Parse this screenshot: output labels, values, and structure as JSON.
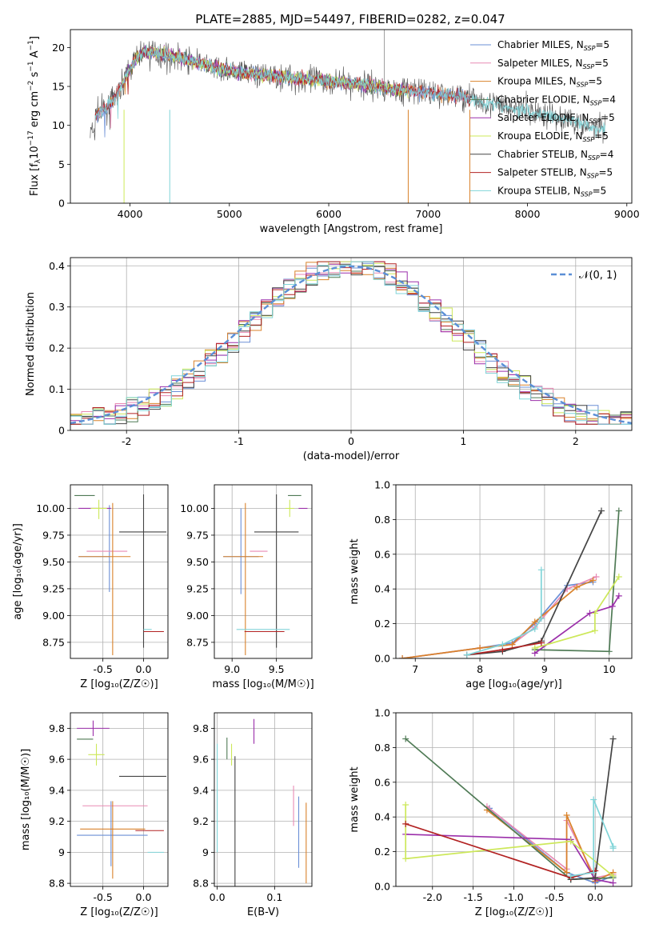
{
  "suptitle": "PLATE=2885, MJD=54497, FIBERID=0282, z=0.047",
  "colors": {
    "chabrier_miles": "#6b8fd6",
    "salpeter_miles": "#e88ab4",
    "kroupa_miles": "#d9822b",
    "chabrier_elodie": "#4f7a55",
    "salpeter_elodie": "#9b2faa",
    "kroupa_elodie": "#cde85a",
    "chabrier_stelib": "#444444",
    "salpeter_stelib": "#b22222",
    "kroupa_stelib": "#80d4d8",
    "normal": "#5b8fd6",
    "grid": "#b0b0b0"
  },
  "chart_data": [
    {
      "id": "spectrum",
      "type": "line",
      "xlabel": "wavelength [Angstrom, rest frame]",
      "ylabel": "Flux [f_λ 10^-17 erg cm^-2 s^-1 A^-1]",
      "xlim": [
        3400,
        9050
      ],
      "ylim": [
        0,
        22.3
      ],
      "xticks": [
        4000,
        5000,
        6000,
        7000,
        8000,
        9000
      ],
      "yticks": [
        0,
        5,
        10,
        15,
        20
      ],
      "grid": false,
      "legend_position": "top-right",
      "legend": [
        {
          "main": "Chabrier MILES, N",
          "sub": "SSP",
          "tail": "=5",
          "key": "chabrier_miles"
        },
        {
          "main": "Salpeter MILES, N",
          "sub": "SSP",
          "tail": "=5",
          "key": "salpeter_miles"
        },
        {
          "main": "Kroupa MILES, N",
          "sub": "SSP",
          "tail": "=5",
          "key": "kroupa_miles"
        },
        {
          "main": "Chabrier ELODIE, N",
          "sub": "SSP",
          "tail": "=4",
          "key": "chabrier_elodie"
        },
        {
          "main": "Salpeter ELODIE, N",
          "sub": "SSP",
          "tail": "=5",
          "key": "salpeter_elodie"
        },
        {
          "main": "Kroupa ELODIE, N",
          "sub": "SSP",
          "tail": "=5",
          "key": "kroupa_elodie"
        },
        {
          "main": "Chabrier STELIB, N",
          "sub": "SSP",
          "tail": "=4",
          "key": "chabrier_stelib"
        },
        {
          "main": "Salpeter STELIB, N",
          "sub": "SSP",
          "tail": "=5",
          "key": "salpeter_stelib"
        },
        {
          "main": "Kroupa STELIB, N",
          "sub": "SSP",
          "tail": "=5",
          "key": "kroupa_stelib"
        }
      ],
      "continuum_x": [
        3650,
        3750,
        3850,
        3950,
        4050,
        4150,
        4300,
        4500,
        4700,
        4900,
        5100,
        5300,
        5500,
        5700,
        5900,
        6100,
        6300,
        6500,
        6700,
        6900,
        7100,
        7300,
        7500,
        7700,
        7900,
        8100,
        8300,
        8500,
        8780
      ],
      "continuum_y": [
        11.2,
        12.2,
        13.5,
        16.0,
        18.5,
        19.5,
        19.2,
        18.7,
        18.0,
        17.3,
        16.8,
        16.5,
        16.3,
        16.0,
        15.8,
        15.6,
        15.3,
        14.9,
        14.6,
        14.3,
        14.0,
        13.8,
        13.2,
        12.6,
        12.0,
        11.5,
        11.0,
        10.4,
        9.2
      ]
    },
    {
      "id": "residuals",
      "type": "histogram",
      "xlabel": "(data-model)/error",
      "ylabel": "Normed distribution",
      "xlim": [
        -2.5,
        2.5
      ],
      "ylim": [
        0,
        0.42
      ],
      "xticks": [
        -2,
        -1,
        0,
        1,
        2
      ],
      "yticks": [
        0.0,
        0.1,
        0.2,
        0.3,
        0.4
      ],
      "grid": true,
      "legend_position": "top-right",
      "bins": 50,
      "normal_label": "𝒩(0, 1)"
    },
    {
      "id": "age_vs_Z",
      "type": "errorbar",
      "xlabel": "Z [log₁₀(Z/Z☉)]",
      "ylabel": "age  [log₁₀(age/yr)]",
      "xlim": [
        -0.9,
        0.3
      ],
      "ylim": [
        8.6,
        10.22
      ],
      "xticks": [
        -0.5,
        0.0
      ],
      "yticks": [
        8.75,
        9.0,
        9.25,
        9.5,
        9.75,
        10.0
      ],
      "grid": true,
      "points": [
        {
          "key": "chabrier_miles",
          "x": -0.42,
          "xerr": [
            0.38,
            0.0
          ],
          "y": 9.55,
          "yerr": [
            0.33,
            0.48
          ]
        },
        {
          "key": "salpeter_miles",
          "x": -0.45,
          "xerr": [
            0.25,
            0.25
          ],
          "y": 9.6,
          "yerr": [
            0.0,
            0.0
          ]
        },
        {
          "key": "kroupa_miles",
          "x": -0.38,
          "xerr": [
            0.42,
            0.22
          ],
          "y": 9.55,
          "yerr": [
            0.92,
            0.5
          ]
        },
        {
          "key": "chabrier_elodie",
          "x": -0.6,
          "xerr": [
            0.25,
            0.0
          ],
          "y": 10.12,
          "yerr": [
            0.0,
            0.0
          ]
        },
        {
          "key": "salpeter_elodie",
          "x": -0.6,
          "xerr": [
            0.2,
            0.2
          ],
          "y": 10.0,
          "yerr": [
            0.0,
            0.0
          ]
        },
        {
          "key": "kroupa_elodie",
          "x": -0.55,
          "xerr": [
            0.1,
            0.1
          ],
          "y": 10.0,
          "yerr": [
            0.1,
            0.08
          ]
        },
        {
          "key": "chabrier_stelib",
          "x": 0.0,
          "xerr": [
            0.3,
            0.28
          ],
          "y": 9.78,
          "yerr": [
            1.08,
            0.35
          ]
        },
        {
          "key": "salpeter_stelib",
          "x": 0.1,
          "xerr": [
            0.1,
            0.15
          ],
          "y": 8.85,
          "yerr": [
            0.0,
            0.0
          ]
        },
        {
          "key": "kroupa_stelib",
          "x": 0.05,
          "xerr": [
            0.05,
            0.05
          ],
          "y": 8.87,
          "yerr": [
            0.0,
            0.0
          ]
        }
      ]
    },
    {
      "id": "age_vs_mass",
      "type": "errorbar",
      "xlabel": "mass [log₁₀(M/M☉)]",
      "ylabel": "",
      "xlim": [
        8.8,
        9.9
      ],
      "ylim": [
        8.6,
        10.22
      ],
      "xticks": [
        9.0,
        9.5
      ],
      "yticks": [
        8.75,
        9.0,
        9.25,
        9.5,
        9.75,
        10.0
      ],
      "grid": true,
      "points": [
        {
          "key": "chabrier_miles",
          "x": 9.1,
          "xerr": [
            0.2,
            0.2
          ],
          "y": 9.55,
          "yerr": [
            0.35,
            0.45
          ]
        },
        {
          "key": "salpeter_miles",
          "x": 9.3,
          "xerr": [
            0.1,
            0.1
          ],
          "y": 9.6,
          "yerr": [
            0.0,
            0.0
          ]
        },
        {
          "key": "kroupa_miles",
          "x": 9.15,
          "xerr": [
            0.25,
            0.2
          ],
          "y": 9.55,
          "yerr": [
            0.92,
            0.5
          ]
        },
        {
          "key": "chabrier_elodie",
          "x": 9.73,
          "xerr": [
            0.1,
            0.05
          ],
          "y": 10.12,
          "yerr": [
            0.0,
            0.0
          ]
        },
        {
          "key": "salpeter_elodie",
          "x": 9.8,
          "xerr": [
            0.05,
            0.05
          ],
          "y": 10.0,
          "yerr": [
            0.0,
            0.0
          ]
        },
        {
          "key": "kroupa_elodie",
          "x": 9.65,
          "xerr": [
            0.05,
            0.05
          ],
          "y": 10.0,
          "yerr": [
            0.08,
            0.08
          ]
        },
        {
          "key": "chabrier_stelib",
          "x": 9.5,
          "xerr": [
            0.25,
            0.25
          ],
          "y": 9.78,
          "yerr": [
            1.08,
            0.35
          ]
        },
        {
          "key": "salpeter_stelib",
          "x": 9.14,
          "xerr": [
            0.0,
            0.45
          ],
          "y": 8.85,
          "yerr": [
            0.0,
            0.0
          ]
        },
        {
          "key": "kroupa_stelib",
          "x": 9.05,
          "xerr": [
            0.0,
            0.6
          ],
          "y": 8.87,
          "yerr": [
            0.0,
            0.0
          ]
        }
      ]
    },
    {
      "id": "weight_vs_age",
      "type": "line",
      "xlabel": "age  [log₁₀(age/yr)]",
      "ylabel": "mass weight",
      "xlim": [
        6.7,
        10.35
      ],
      "ylim": [
        0,
        1.0
      ],
      "xticks": [
        7,
        8,
        9,
        10
      ],
      "yticks": [
        0.0,
        0.2,
        0.4,
        0.6,
        0.8,
        1.0
      ],
      "grid": true,
      "series": [
        {
          "key": "chabrier_miles",
          "x": [
            6.8,
            8.0,
            8.5,
            8.85,
            9.35,
            9.75
          ],
          "y": [
            0.0,
            0.06,
            0.09,
            0.2,
            0.42,
            0.44
          ]
        },
        {
          "key": "salpeter_miles",
          "x": [
            6.8,
            8.0,
            8.5,
            8.85,
            9.35,
            9.8
          ],
          "y": [
            0.0,
            0.06,
            0.08,
            0.18,
            0.4,
            0.47
          ]
        },
        {
          "key": "kroupa_miles",
          "x": [
            6.8,
            8.0,
            8.5,
            8.85,
            9.5,
            9.75
          ],
          "y": [
            0.0,
            0.06,
            0.08,
            0.21,
            0.41,
            0.45
          ]
        },
        {
          "key": "chabrier_elodie",
          "x": [
            8.85,
            10.0,
            10.15
          ],
          "y": [
            0.05,
            0.04,
            0.85
          ]
        },
        {
          "key": "salpeter_elodie",
          "x": [
            8.85,
            9.7,
            10.05,
            10.15
          ],
          "y": [
            0.03,
            0.26,
            0.3,
            0.36
          ]
        },
        {
          "key": "kroupa_elodie",
          "x": [
            8.85,
            9.78,
            9.78,
            10.15
          ],
          "y": [
            0.06,
            0.16,
            0.26,
            0.47
          ]
        },
        {
          "key": "chabrier_stelib",
          "x": [
            7.8,
            8.35,
            8.95,
            9.88
          ],
          "y": [
            0.02,
            0.04,
            0.1,
            0.85
          ]
        },
        {
          "key": "salpeter_stelib",
          "x": [
            7.8,
            8.35,
            8.95
          ],
          "y": [
            0.02,
            0.05,
            0.09
          ]
        },
        {
          "key": "kroupa_stelib",
          "x": [
            7.8,
            8.35,
            8.85,
            8.95,
            8.95
          ],
          "y": [
            0.02,
            0.08,
            0.17,
            0.23,
            0.51
          ]
        }
      ]
    },
    {
      "id": "mass_vs_Z",
      "type": "errorbar",
      "xlabel": "Z [log₁₀(Z/Z☉)]",
      "ylabel": "mass [log₁₀(M/M☉)]",
      "xlim": [
        -0.9,
        0.3
      ],
      "ylim": [
        8.78,
        9.9
      ],
      "xticks": [
        -0.5,
        0.0
      ],
      "yticks": [
        8.8,
        9.0,
        9.2,
        9.4,
        9.6,
        9.8
      ],
      "grid": true,
      "points": [
        {
          "key": "chabrier_miles",
          "x": -0.4,
          "xerr": [
            0.42,
            0.45
          ],
          "y": 9.11,
          "yerr": [
            0.2,
            0.22
          ]
        },
        {
          "key": "salpeter_miles",
          "x": -0.4,
          "xerr": [
            0.35,
            0.45
          ],
          "y": 9.3,
          "yerr": [
            0.0,
            0.0
          ]
        },
        {
          "key": "kroupa_miles",
          "x": -0.38,
          "xerr": [
            0.4,
            0.4
          ],
          "y": 9.15,
          "yerr": [
            0.32,
            0.18
          ]
        },
        {
          "key": "chabrier_elodie",
          "x": -0.62,
          "xerr": [
            0.2,
            0.0
          ],
          "y": 9.73,
          "yerr": [
            0.0,
            0.0
          ]
        },
        {
          "key": "salpeter_elodie",
          "x": -0.62,
          "xerr": [
            0.2,
            0.2
          ],
          "y": 9.8,
          "yerr": [
            0.05,
            0.05
          ]
        },
        {
          "key": "kroupa_elodie",
          "x": -0.58,
          "xerr": [
            0.1,
            0.1
          ],
          "y": 9.63,
          "yerr": [
            0.07,
            0.07
          ]
        },
        {
          "key": "chabrier_stelib",
          "x": 0.0,
          "xerr": [
            0.3,
            0.28
          ],
          "y": 9.49,
          "yerr": [
            0.0,
            0.0
          ]
        },
        {
          "key": "salpeter_stelib",
          "x": 0.1,
          "xerr": [
            0.2,
            0.15
          ],
          "y": 9.14,
          "yerr": [
            0.0,
            0.0
          ]
        },
        {
          "key": "kroupa_stelib",
          "x": 0.05,
          "xerr": [
            0.0,
            0.2
          ],
          "y": 9.0,
          "yerr": [
            0.0,
            0.0
          ]
        }
      ]
    },
    {
      "id": "mass_vs_ebv",
      "type": "errorbar",
      "xlabel": "E(B-V)",
      "ylabel": "",
      "xlim": [
        -0.005,
        0.165
      ],
      "ylim": [
        8.78,
        9.9
      ],
      "xticks": [
        0.0,
        0.1
      ],
      "yticks": [
        8.8,
        9.0,
        9.2,
        9.4,
        9.6,
        9.8
      ],
      "grid": true,
      "points": [
        {
          "key": "chabrier_miles",
          "x": 0.142,
          "xerr": [
            0.0,
            0.0
          ],
          "y": 9.13,
          "yerr": [
            0.23,
            0.23
          ]
        },
        {
          "key": "salpeter_miles",
          "x": 0.133,
          "xerr": [
            0.0,
            0.0
          ],
          "y": 9.3,
          "yerr": [
            0.13,
            0.13
          ]
        },
        {
          "key": "kroupa_miles",
          "x": 0.155,
          "xerr": [
            0.0,
            0.0
          ],
          "y": 9.0,
          "yerr": [
            0.2,
            0.32
          ]
        },
        {
          "key": "chabrier_elodie",
          "x": 0.017,
          "xerr": [
            0.0,
            0.0
          ],
          "y": 9.67,
          "yerr": [
            0.07,
            0.07
          ]
        },
        {
          "key": "salpeter_elodie",
          "x": 0.064,
          "xerr": [
            0.0,
            0.0
          ],
          "y": 9.78,
          "yerr": [
            0.08,
            0.08
          ]
        },
        {
          "key": "kroupa_elodie",
          "x": 0.025,
          "xerr": [
            0.0,
            0.0
          ],
          "y": 9.63,
          "yerr": [
            0.07,
            0.07
          ]
        },
        {
          "key": "chabrier_stelib",
          "x": 0.031,
          "xerr": [
            0.0,
            0.0
          ],
          "y": 9.2,
          "yerr": [
            0.42,
            0.42
          ]
        },
        {
          "key": "salpeter_stelib",
          "x": 0.005,
          "xerr": [
            0.0,
            0.0
          ],
          "y": 9.4,
          "yerr": [
            0.0,
            0.0
          ]
        },
        {
          "key": "kroupa_stelib",
          "x": 0.0,
          "xerr": [
            0.0,
            0.0
          ],
          "y": 9.35,
          "yerr": [
            0.35,
            0.35
          ]
        }
      ]
    },
    {
      "id": "weight_vs_Z",
      "type": "line",
      "xlabel": "Z [log₁₀(Z/Z☉)]",
      "ylabel": "mass weight",
      "xlim": [
        -2.45,
        0.45
      ],
      "ylim": [
        0,
        1.0
      ],
      "xticks": [
        -2.0,
        -1.5,
        -1.0,
        -0.5,
        0.0
      ],
      "yticks": [
        0.0,
        0.2,
        0.4,
        0.6,
        0.8,
        1.0
      ],
      "grid": true,
      "series": [
        {
          "key": "chabrier_miles",
          "x": [
            -1.3,
            -0.35,
            0.0,
            0.22
          ],
          "y": [
            0.45,
            0.08,
            0.02,
            0.06
          ]
        },
        {
          "key": "salpeter_miles",
          "x": [
            -1.33,
            -0.35,
            -0.35,
            0.0,
            0.22
          ],
          "y": [
            0.46,
            0.1,
            0.38,
            0.05,
            0.07
          ]
        },
        {
          "key": "kroupa_miles",
          "x": [
            -1.33,
            -0.35,
            -0.35,
            0.0,
            0.22
          ],
          "y": [
            0.44,
            0.08,
            0.41,
            0.03,
            0.08
          ]
        },
        {
          "key": "chabrier_elodie",
          "x": [
            -2.33,
            -0.3,
            0.22
          ],
          "y": [
            0.85,
            0.04,
            0.05
          ]
        },
        {
          "key": "salpeter_elodie",
          "x": [
            -2.33,
            -0.3,
            0.0,
            0.22
          ],
          "y": [
            0.3,
            0.27,
            0.04,
            0.02
          ]
        },
        {
          "key": "kroupa_elodie",
          "x": [
            -2.33,
            -2.33,
            -0.3,
            0.22
          ],
          "y": [
            0.47,
            0.16,
            0.26,
            0.06
          ]
        },
        {
          "key": "chabrier_stelib",
          "x": [
            -0.3,
            0.0,
            0.22
          ],
          "y": [
            0.04,
            0.05,
            0.85
          ]
        },
        {
          "key": "salpeter_stelib",
          "x": [
            -2.33,
            -0.3,
            0.0
          ],
          "y": [
            0.36,
            0.05,
            0.09
          ]
        },
        {
          "key": "kroupa_stelib",
          "x": [
            -0.3,
            -0.02,
            -0.02,
            0.22,
            0.22
          ],
          "y": [
            0.06,
            0.08,
            0.5,
            0.23,
            0.22
          ]
        }
      ]
    }
  ]
}
